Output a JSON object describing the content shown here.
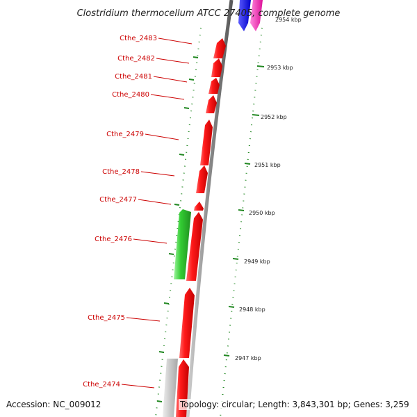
{
  "title": "Clostridium thermocellum ATCC 27405, complete genome",
  "footer": {
    "accession": "Accession: NC_009012",
    "topology": "Topology: circular; Length: 3,843,301 bp; Genes: 3,259"
  },
  "colors": {
    "forward_gene": "#ee1111",
    "reverse_gene": "#33cc33",
    "other_gene": "#c8c8c8",
    "blue_gene": "#1a1aee",
    "magenta_gene": "#ee33bb",
    "label": "#cc0000",
    "tick": "#228822",
    "backbone": "#888888"
  },
  "kbp_ticks": [
    "2954 kbp",
    "2953 kbp",
    "2952 kbp",
    "2951 kbp",
    "2950 kbp",
    "2949 kbp",
    "2948 kbp",
    "2947 kbp"
  ],
  "gene_labels": [
    "Cthe_2483",
    "Cthe_2482",
    "Cthe_2481",
    "Cthe_2480",
    "Cthe_2479",
    "Cthe_2478",
    "Cthe_2477",
    "Cthe_2476",
    "Cthe_2475",
    "Cthe_2474"
  ]
}
